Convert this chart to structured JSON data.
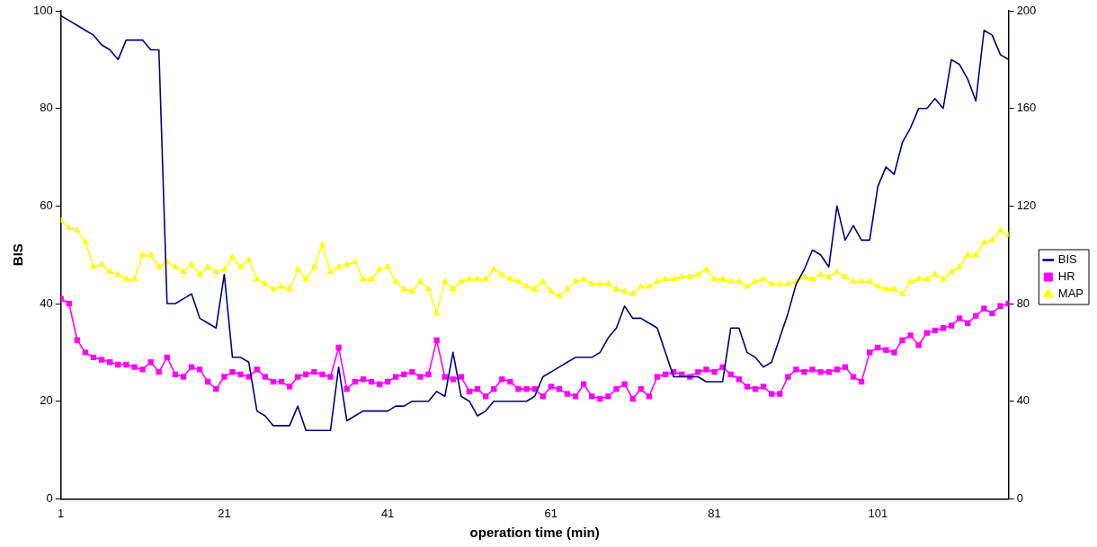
{
  "chart_data": {
    "type": "line",
    "xlabel": "operation time (min)",
    "ylabel": "BIS",
    "x": [
      1,
      2,
      3,
      4,
      5,
      6,
      7,
      8,
      9,
      10,
      11,
      12,
      13,
      14,
      15,
      16,
      17,
      18,
      19,
      20,
      21,
      22,
      23,
      24,
      25,
      26,
      27,
      28,
      29,
      30,
      31,
      32,
      33,
      34,
      35,
      36,
      37,
      38,
      39,
      40,
      41,
      42,
      43,
      44,
      45,
      46,
      47,
      48,
      49,
      50,
      51,
      52,
      53,
      54,
      55,
      56,
      57,
      58,
      59,
      60,
      61,
      62,
      63,
      64,
      65,
      66,
      67,
      68,
      69,
      70,
      71,
      72,
      73,
      74,
      75,
      76,
      77,
      78,
      79,
      80,
      81,
      82,
      83,
      84,
      85,
      86,
      87,
      88,
      89,
      90,
      91,
      92,
      93,
      94,
      95,
      96,
      97,
      98,
      99,
      100,
      101,
      102,
      103,
      104,
      105,
      106,
      107,
      108,
      109,
      110,
      111,
      112,
      113,
      114,
      115,
      116,
      117
    ],
    "xlim": [
      1,
      117
    ],
    "xticks": [
      1,
      21,
      41,
      61,
      81,
      101
    ],
    "ylim": [
      0,
      100
    ],
    "yticks": [
      0,
      20,
      40,
      60,
      80,
      100
    ],
    "y2lim": [
      0,
      200
    ],
    "y2ticks": [
      0,
      40,
      80,
      120,
      160,
      200
    ],
    "grid": false,
    "legend": "right",
    "series": [
      {
        "name": "BIS",
        "color": "#000080",
        "marker": "none",
        "values": [
          99,
          98,
          97,
          96,
          95,
          93,
          92,
          90,
          94,
          94,
          94,
          92,
          92,
          40,
          40,
          41,
          42,
          37,
          36,
          35,
          46,
          29,
          29,
          28,
          18,
          17,
          15,
          15,
          15,
          19,
          14,
          14,
          14,
          14,
          27,
          16,
          17,
          18,
          18,
          18,
          18,
          19,
          19,
          20,
          20,
          20,
          22,
          21,
          30,
          21,
          20,
          17,
          18,
          20,
          20,
          20,
          20,
          20,
          21,
          25,
          26,
          27,
          28,
          29,
          29,
          29,
          30,
          33,
          35,
          39.5,
          37,
          37,
          36,
          35,
          30,
          25,
          25,
          25,
          25,
          24,
          24,
          24,
          35,
          35,
          30,
          29,
          27,
          28,
          33,
          38,
          44,
          47,
          51,
          50,
          47.5,
          60,
          53,
          56,
          53,
          53,
          64,
          68,
          66.5,
          73,
          76,
          80,
          80,
          82,
          80,
          90,
          89,
          86,
          81.5,
          96,
          95,
          91,
          90
        ]
      },
      {
        "name": "HR",
        "color": "#ff00ff",
        "marker": "square",
        "axis": "y2",
        "values": [
          82,
          80,
          65,
          60,
          58,
          57,
          56,
          55,
          55,
          54,
          53,
          56,
          52,
          58,
          51,
          50,
          54,
          53,
          48,
          45,
          50,
          52,
          51,
          50,
          53,
          50,
          48,
          48,
          46,
          50,
          51,
          52,
          51,
          50,
          62,
          45,
          48,
          49,
          48,
          47,
          48,
          50,
          51,
          52,
          50,
          51,
          65,
          50,
          49,
          50,
          44,
          45,
          42,
          45,
          49,
          48,
          45,
          45,
          45,
          42,
          46,
          45,
          43,
          42,
          47,
          42,
          41,
          42,
          45,
          47,
          41,
          45,
          42,
          50,
          51,
          52,
          51,
          50,
          52,
          53,
          52,
          54,
          51,
          49,
          46,
          45,
          46,
          43,
          43,
          50,
          53,
          52,
          53,
          52,
          52,
          53,
          54,
          50,
          48,
          60,
          62,
          61,
          60,
          65,
          67,
          63,
          68,
          69,
          70,
          71,
          74,
          72,
          75,
          78,
          76,
          79,
          80
        ]
      },
      {
        "name": "MAP",
        "color": "#ffff00",
        "marker": "triangle",
        "axis": "y2",
        "values": [
          114,
          111,
          110,
          105,
          95,
          96,
          93,
          92,
          90,
          90,
          100,
          100,
          95,
          97,
          95,
          93,
          96,
          92,
          95,
          93,
          94,
          99,
          95,
          98,
          90,
          88,
          86,
          87,
          86,
          94,
          90,
          95,
          104,
          93,
          95,
          96,
          97,
          90,
          90,
          94,
          95,
          89,
          86,
          85,
          89,
          86,
          76,
          89,
          86,
          89,
          90,
          90,
          90,
          94,
          92,
          90,
          89,
          87,
          86,
          89,
          85,
          83,
          86,
          89,
          90,
          88,
          88,
          88,
          86,
          85,
          84,
          87,
          87,
          89,
          90,
          90,
          91,
          91,
          92,
          94,
          90,
          90,
          89,
          89,
          87,
          89,
          90,
          88,
          88,
          88,
          89,
          91,
          90,
          92,
          91,
          93,
          91,
          89,
          89,
          89,
          87,
          86,
          86,
          84,
          89,
          90,
          90,
          92,
          90,
          93,
          95,
          100,
          100,
          105,
          106,
          110,
          108
        ]
      }
    ]
  }
}
